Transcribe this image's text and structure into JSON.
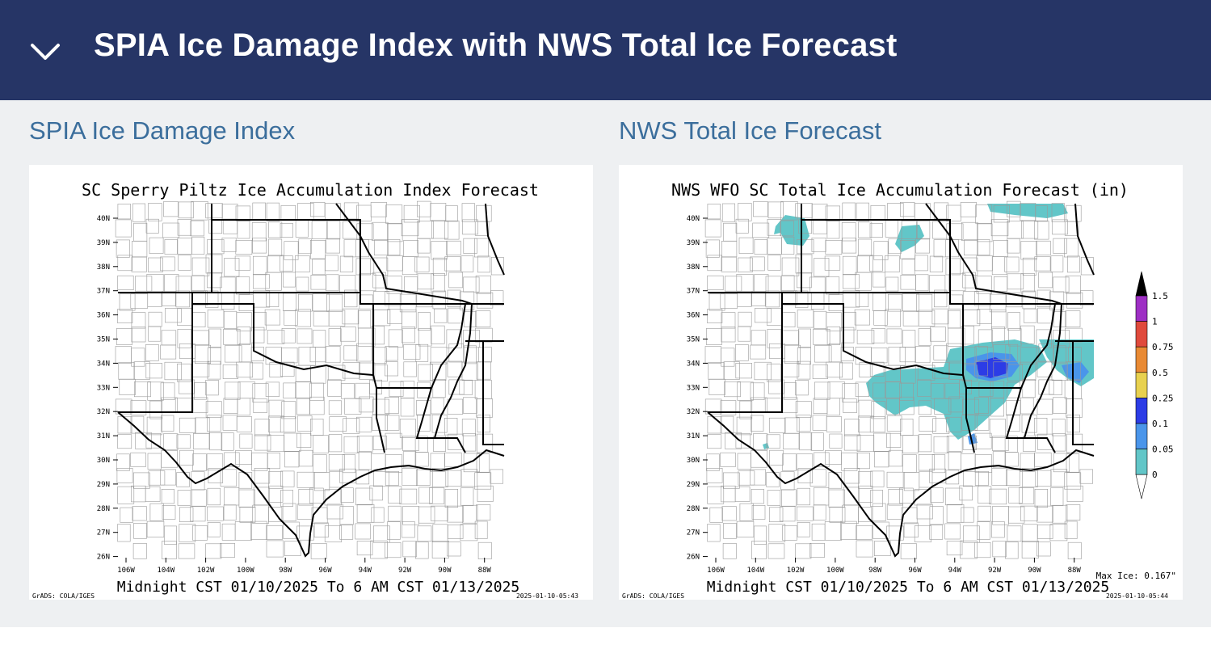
{
  "header": {
    "title": "SPIA Ice Damage Index with NWS Total Ice Forecast",
    "collapse_icon": "chevron-down-icon"
  },
  "panels": [
    {
      "heading": "SPIA Ice Damage Index",
      "map": {
        "title": "SC Sperry Piltz Ice Accumulation Index Forecast",
        "valid_period": "Midnight CST 01/10/2025 To 6 AM CST 01/13/2025",
        "credit": "GrADS: COLA/IGES",
        "timestamp": "2025-01-10-05:43"
      }
    },
    {
      "heading": "NWS Total Ice Forecast",
      "map": {
        "title": "NWS WFO SC Total Ice Accumulation Forecast (in)",
        "valid_period": "Midnight CST 01/10/2025 To 6 AM CST 01/13/2025",
        "credit": "GrADS: COLA/IGES",
        "timestamp": "2025-01-10-05:44",
        "max_ice": "Max Ice: 0.167\""
      },
      "legend": {
        "labels": [
          "1.5",
          "1",
          "0.75",
          "0.5",
          "0.25",
          "0.1",
          "0.05",
          "0"
        ],
        "colors": [
          "#9e2fc4",
          "#e04a3c",
          "#e98a34",
          "#e8d14f",
          "#2c3ce6",
          "#4a95ea",
          "#62c6c8"
        ],
        "top_color": "#000000",
        "bottom_color": "#ffffff"
      }
    }
  ],
  "axes": {
    "lat_labels": [
      "40N",
      "39N",
      "38N",
      "37N",
      "36N",
      "35N",
      "34N",
      "33N",
      "32N",
      "31N",
      "30N",
      "29N",
      "28N",
      "27N",
      "26N"
    ],
    "lon_labels": [
      "106W",
      "104W",
      "102W",
      "100W",
      "98W",
      "96W",
      "94W",
      "92W",
      "90W",
      "88W"
    ]
  },
  "colors": {
    "header_bg": "#263566",
    "content_bg": "#eef0f2",
    "heading_text": "#3b6e9c",
    "ice_light": "#62c6c8",
    "ice_mid": "#4a95ea",
    "ice_heavy": "#2c3ce6"
  }
}
